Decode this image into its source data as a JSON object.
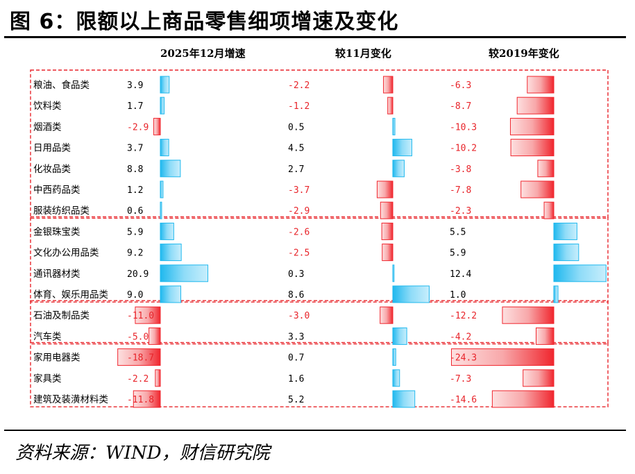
{
  "title": "图 6：限额以上商品零售细项增速及变化",
  "source": "资料来源：WIND，财信研究院",
  "colors": {
    "positive": "#1fb8ee",
    "negative": "#f0262e",
    "positive_text": "#000000",
    "negative_text": "#e8242a",
    "group_border": "#e8242a"
  },
  "chart_data": {
    "type": "bar",
    "panels": [
      {
        "label": "2025年12月增速",
        "values": [
          3.9,
          1.7,
          -2.9,
          3.7,
          8.8,
          1.2,
          0.6,
          5.9,
          9.2,
          20.9,
          9.0,
          -11.0,
          -5.0,
          -18.7,
          -2.2,
          -11.8
        ]
      },
      {
        "label": "较11月变化",
        "values": [
          -2.2,
          -1.2,
          0.5,
          4.5,
          2.7,
          -3.7,
          -2.9,
          -2.6,
          -2.5,
          0.3,
          8.6,
          -3.0,
          3.3,
          0.7,
          1.6,
          5.2
        ]
      },
      {
        "label": "较2019年变化",
        "values": [
          -6.3,
          -8.7,
          -10.3,
          -10.2,
          -3.8,
          -7.8,
          -2.3,
          5.5,
          5.9,
          12.4,
          1.0,
          -12.2,
          -4.2,
          -24.3,
          -7.3,
          -14.6
        ]
      }
    ],
    "categories": [
      "粮油、食品类",
      "饮料类",
      "烟酒类",
      "日用品类",
      "化妆品类",
      "中西药品类",
      "服装纺织品类",
      "金银珠宝类",
      "文化办公用品类",
      "通讯器材类",
      "体育、娱乐用品类",
      "石油及制品类",
      "汽车类",
      "家用电器类",
      "家具类",
      "建筑及装潢材料类"
    ],
    "value_labels": [
      [
        "3.9",
        "1.7",
        "-2.9",
        "3.7",
        "8.8",
        "1.2",
        "0.6",
        "5.9",
        "9.2",
        "20.9",
        "9.0",
        "-11.0",
        "-5.0",
        "-18.7",
        "-2.2",
        "-11.8"
      ],
      [
        "-2.2",
        "-1.2",
        "0.5",
        "4.5",
        "2.7",
        "-3.7",
        "-2.9",
        "-2.6",
        "-2.5",
        "0.3",
        "8.6",
        "-3.0",
        "3.3",
        "0.7",
        "1.6",
        "5.2"
      ],
      [
        "-6.3",
        "-8.7",
        "-10.3",
        "-10.2",
        "-3.8",
        "-7.8",
        "-2.3",
        "5.5",
        "5.9",
        "12.4",
        "1.0",
        "-12.2",
        "-4.2",
        "-24.3",
        "-7.3",
        "-14.6"
      ]
    ],
    "groups": [
      [
        0,
        6
      ],
      [
        7,
        10
      ],
      [
        11,
        12
      ],
      [
        13,
        15
      ]
    ],
    "grid": false,
    "legend": "none"
  }
}
